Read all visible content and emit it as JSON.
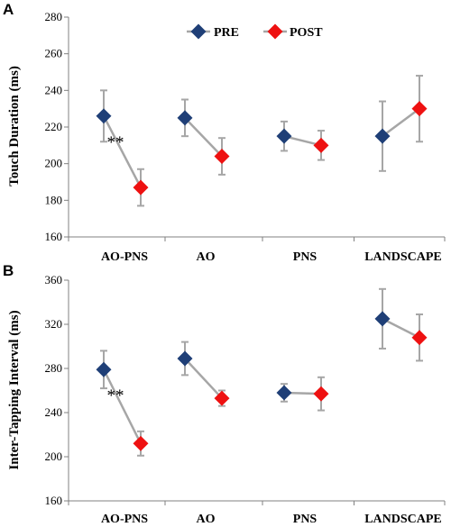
{
  "colors": {
    "pre": "#1f3f77",
    "post": "#ee1111",
    "line": "#a6a6a6",
    "error": "#a6a6a6",
    "axis": "#808080"
  },
  "legend": {
    "position": "top-center",
    "pre_label": "PRE",
    "post_label": "POST"
  },
  "chart_data": [
    {
      "type": "line",
      "panel_label": "A",
      "ylabel": "Touch Duration (ms)",
      "xlabel": "",
      "categories": [
        "AO-PNS",
        "AO",
        "PNS",
        "LANDSCAPE"
      ],
      "ylim": [
        160,
        280
      ],
      "yticks": [
        160,
        180,
        200,
        220,
        240,
        260,
        280
      ],
      "grid": false,
      "series": [
        {
          "name": "PRE",
          "values": [
            226,
            225,
            215,
            215
          ],
          "errors": [
            14,
            10,
            8,
            19
          ]
        },
        {
          "name": "POST",
          "values": [
            187,
            204,
            210,
            230
          ],
          "errors": [
            10,
            10,
            8,
            18
          ]
        }
      ],
      "annotations": [
        {
          "category": "AO-PNS",
          "text": "**"
        }
      ]
    },
    {
      "type": "line",
      "panel_label": "B",
      "ylabel": "Inter-Tapping Interval (ms)",
      "xlabel": "",
      "categories": [
        "AO-PNS",
        "AO",
        "PNS",
        "LANDSCAPE"
      ],
      "ylim": [
        160,
        360
      ],
      "yticks": [
        160,
        200,
        240,
        280,
        320,
        360
      ],
      "grid": false,
      "series": [
        {
          "name": "PRE",
          "values": [
            279,
            289,
            258,
            325
          ],
          "errors": [
            17,
            15,
            8,
            27
          ]
        },
        {
          "name": "POST",
          "values": [
            212,
            253,
            257,
            308
          ],
          "errors": [
            11,
            7,
            15,
            21
          ]
        }
      ],
      "annotations": [
        {
          "category": "AO-PNS",
          "text": "**"
        }
      ]
    }
  ]
}
